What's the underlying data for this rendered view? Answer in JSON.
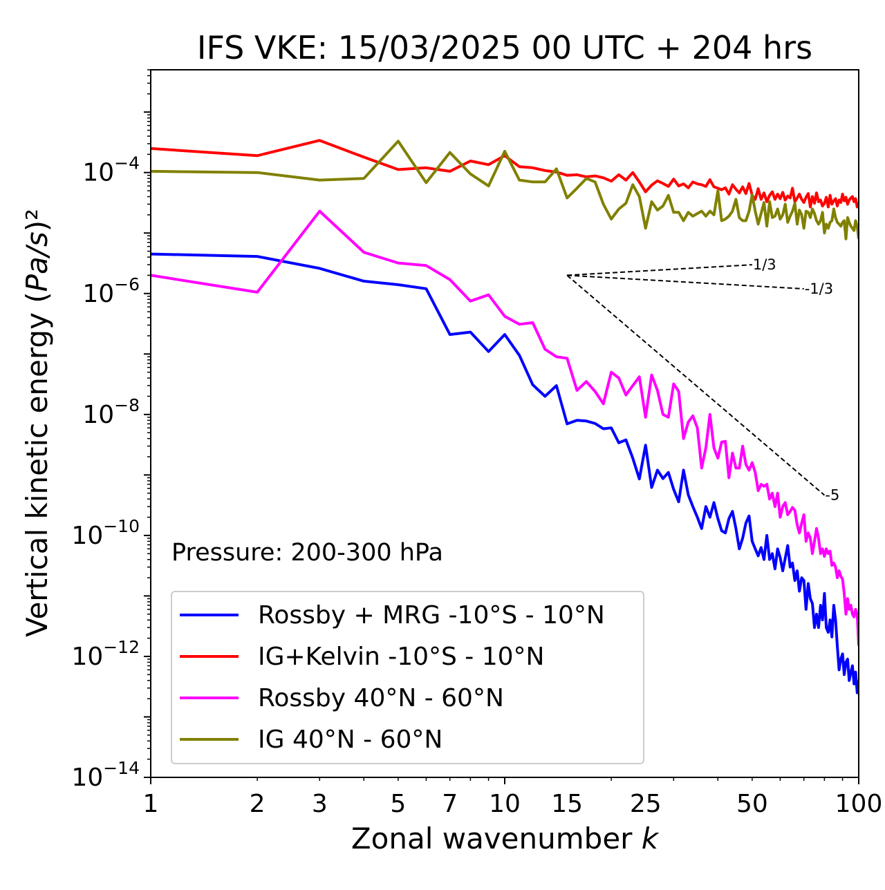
{
  "chart_data": {
    "type": "line",
    "title": "IFS VKE: 15/03/2025 00 UTC + 204 hrs",
    "xlabel": "Zonal wavenumber k",
    "ylabel": "Vertical kinetic energy (Pa/s)²",
    "xscale": "log",
    "yscale": "log",
    "xlim": [
      1,
      100
    ],
    "ylim": [
      1e-14,
      0.005
    ],
    "x_ticks": [
      1,
      2,
      3,
      5,
      7,
      10,
      15,
      25,
      50,
      100
    ],
    "x_tick_labels": [
      "1",
      "2",
      "3",
      "5",
      "7",
      "10",
      "15",
      "25",
      "50",
      "100"
    ],
    "y_ticks": [
      -14,
      -12,
      -10,
      -8,
      -6,
      -4
    ],
    "y_tick_base": "10",
    "annotation": "Pressure: 200-300 hPa",
    "legend_position": "lower-left",
    "series": [
      {
        "name": "Rossby + MRG -10°S - 10°N",
        "color": "#0000ff",
        "x": [
          1,
          2,
          3,
          4,
          5,
          6,
          7,
          8,
          9,
          10,
          11,
          12,
          13,
          14,
          15,
          16,
          17,
          18,
          19,
          20,
          21,
          22,
          23,
          24,
          25,
          26,
          27,
          28,
          29,
          30,
          31,
          32,
          33,
          34,
          35,
          36,
          37,
          38,
          39,
          40,
          41,
          42,
          43,
          44,
          45,
          46,
          47,
          48,
          49,
          50,
          51,
          52,
          53,
          54,
          55,
          56,
          57,
          58,
          59,
          60,
          61,
          62,
          63,
          64,
          65,
          66,
          67,
          68,
          69,
          70,
          71,
          72,
          73,
          74,
          75,
          76,
          77,
          78,
          79,
          80,
          81,
          82,
          83,
          84,
          85,
          86,
          87,
          88,
          89,
          90,
          91,
          92,
          93,
          94,
          95,
          96,
          97,
          98,
          99,
          100
        ],
        "y": [
          4.5e-06,
          4.1e-06,
          2.6e-06,
          1.6e-06,
          1.4e-06,
          1.2e-06,
          2.1e-07,
          2.3e-07,
          1.1e-07,
          2.1e-07,
          9.5e-08,
          3.1e-08,
          2e-08,
          3e-08,
          7e-09,
          8e-09,
          7.8e-09,
          7.1e-09,
          5.8e-09,
          6e-09,
          3.4e-09,
          3.8e-09,
          1.9e-09,
          8.6e-10,
          3.1e-09,
          6.2e-10,
          1.2e-09,
          8.7e-10,
          1.1e-09,
          5.8e-10,
          3.6e-10,
          1.2e-09,
          4.7e-10,
          3e-10,
          2e-10,
          1.3e-10,
          3e-10,
          2e-10,
          3.5e-10,
          1.9e-10,
          1.2e-10,
          1.1e-10,
          1.9e-10,
          2.5e-10,
          1.3e-10,
          6e-11,
          9e-11,
          1.6e-10,
          2.1e-10,
          8e-11,
          6e-11,
          4.6e-11,
          6.3e-11,
          4e-11,
          1e-10,
          4e-11,
          5e-11,
          2.8e-11,
          6e-11,
          4.3e-11,
          2.6e-11,
          4.2e-11,
          6.8e-11,
          3e-11,
          3.5e-11,
          1.8e-11,
          2.6e-11,
          1.2e-11,
          2e-11,
          1.8e-11,
          6e-12,
          1.6e-11,
          9e-12,
          7.5e-12,
          3e-12,
          5e-12,
          3e-12,
          7e-12,
          4e-12,
          1.1e-11,
          3e-12,
          2.5e-12,
          4e-12,
          2.1e-12,
          7e-12,
          4e-12,
          1.5e-12,
          6e-13,
          9e-13,
          1.1e-12,
          5e-13,
          8e-13,
          9e-13,
          4e-13,
          5.5e-13,
          7e-13,
          3.5e-13,
          5.5e-13,
          2.5e-13,
          4e-13
        ],
        "color_name": "blue"
      },
      {
        "name": "IG+Kelvin -10°S - 10°N",
        "color": "#ff0000",
        "x": [
          1,
          2,
          3,
          4,
          5,
          6,
          7,
          8,
          9,
          10,
          11,
          12,
          13,
          14,
          15,
          16,
          17,
          18,
          19,
          20,
          21,
          22,
          23,
          24,
          25,
          26,
          27,
          28,
          29,
          30,
          31,
          32,
          33,
          34,
          35,
          36,
          37,
          38,
          39,
          40,
          41,
          42,
          43,
          44,
          45,
          46,
          47,
          48,
          49,
          50,
          51,
          52,
          53,
          54,
          55,
          56,
          57,
          58,
          59,
          60,
          61,
          62,
          63,
          64,
          65,
          66,
          67,
          68,
          69,
          70,
          71,
          72,
          73,
          74,
          75,
          76,
          77,
          78,
          79,
          80,
          81,
          82,
          83,
          84,
          85,
          86,
          87,
          88,
          89,
          90,
          91,
          92,
          93,
          94,
          95,
          96,
          97,
          98,
          99,
          100
        ],
        "y": [
          0.00025,
          0.00019,
          0.00034,
          0.00018,
          0.000112,
          0.00012,
          0.000105,
          0.000155,
          0.000135,
          0.00019,
          0.000125,
          0.00012,
          0.000108,
          0.000102,
          9e-05,
          9.2e-05,
          8.5e-05,
          8.8e-05,
          8.2e-05,
          7.2e-05,
          9.2e-05,
          7.5e-05,
          0.0001,
          7e-05,
          4.8e-05,
          6.2e-05,
          7.3e-05,
          6.6e-05,
          5.9e-05,
          7.8e-05,
          6e-05,
          6.5e-05,
          5.6e-05,
          7e-05,
          6.5e-05,
          6.3e-05,
          5.9e-05,
          7.6e-05,
          5.8e-05,
          5.5e-05,
          5.2e-05,
          5.6e-05,
          4.4e-05,
          6.3e-05,
          5.3e-05,
          4.6e-05,
          5.8e-05,
          4.5e-05,
          6.6e-05,
          4.2e-05,
          3.6e-05,
          5.4e-05,
          3.6e-05,
          4.6e-05,
          3.3e-05,
          4.2e-05,
          4.8e-05,
          3.6e-05,
          4.4e-05,
          3.7e-05,
          4.7e-05,
          3.5e-05,
          4.1e-05,
          3.8e-05,
          5.5e-05,
          3.3e-05,
          3.8e-05,
          4.4e-05,
          3.6e-05,
          3.2e-05,
          3.9e-05,
          4.5e-05,
          2.7e-05,
          4e-05,
          3.1e-05,
          4.6e-05,
          3.3e-05,
          3.5e-05,
          2.8e-05,
          3.1e-05,
          3.9e-05,
          2.7e-05,
          4.2e-05,
          3e-05,
          3.4e-05,
          3.7e-05,
          2.8e-05,
          3.5e-05,
          3.2e-05,
          4.4e-05,
          3.4e-05,
          3.9e-05,
          3e-05,
          3.5e-05,
          3.8e-05,
          4e-05,
          3.3e-05,
          3.7e-05,
          2.7e-05,
          3.2e-05
        ],
        "color_name": "red"
      },
      {
        "name": "Rossby 40°N - 60°N",
        "color": "#ff00ff",
        "x": [
          1,
          2,
          3,
          4,
          5,
          6,
          7,
          8,
          9,
          10,
          11,
          12,
          13,
          14,
          15,
          16,
          17,
          18,
          19,
          20,
          21,
          22,
          23,
          24,
          25,
          26,
          27,
          28,
          29,
          30,
          31,
          32,
          33,
          34,
          35,
          36,
          37,
          38,
          39,
          40,
          41,
          42,
          43,
          44,
          45,
          46,
          47,
          48,
          49,
          50,
          51,
          52,
          53,
          54,
          55,
          56,
          57,
          58,
          59,
          60,
          61,
          62,
          63,
          64,
          65,
          66,
          67,
          68,
          69,
          70,
          71,
          72,
          73,
          74,
          75,
          76,
          77,
          78,
          79,
          80,
          81,
          82,
          83,
          84,
          85,
          86,
          87,
          88,
          89,
          90,
          91,
          92,
          93,
          94,
          95,
          96,
          97,
          98,
          99,
          100
        ],
        "y": [
          2e-06,
          1.05e-06,
          2.3e-05,
          4.8e-06,
          3.2e-06,
          2.9e-06,
          1.7e-06,
          7.5e-07,
          9.5e-07,
          4.2e-07,
          3.1e-07,
          3.3e-07,
          1.2e-07,
          9e-08,
          8.5e-08,
          2.5e-08,
          3.5e-08,
          2.4e-08,
          1.5e-08,
          5e-08,
          4e-08,
          2.1e-08,
          3e-08,
          4.2e-08,
          9e-09,
          4.5e-08,
          2.5e-08,
          1e-08,
          9e-09,
          3.2e-08,
          2.4e-08,
          4e-09,
          7.5e-09,
          9.5e-09,
          6e-09,
          1.3e-09,
          2.8e-09,
          1e-08,
          2.8e-09,
          1.9e-09,
          3.5e-09,
          3.6e-09,
          9e-10,
          2.3e-09,
          1.3e-09,
          1.3e-09,
          3e-09,
          1.5e-09,
          1.2e-09,
          1.6e-09,
          1.1e-09,
          5.5e-10,
          7e-10,
          6.5e-10,
          7e-10,
          4e-10,
          5e-10,
          3e-10,
          5e-10,
          2e-10,
          3e-10,
          3.5e-10,
          2.2e-10,
          2.5e-10,
          2.9e-10,
          2.6e-10,
          1.5e-10,
          1.1e-10,
          1.6e-10,
          2.2e-10,
          8e-11,
          1.1e-10,
          9e-11,
          5e-11,
          8e-11,
          1.3e-10,
          9e-11,
          5e-11,
          6e-11,
          4.5e-11,
          6e-11,
          5e-11,
          5.5e-11,
          3.2e-11,
          3.5e-11,
          3e-11,
          2e-11,
          2.6e-11,
          2.1e-11,
          1.9e-11,
          1.1e-11,
          5e-12,
          9e-12,
          6e-12,
          7e-12,
          5e-12,
          4.5e-12,
          6e-12,
          5e-12,
          1.5e-12
        ],
        "color_name": "magenta"
      },
      {
        "name": "IG 40°N - 60°N",
        "color": "#808000",
        "x": [
          1,
          2,
          3,
          4,
          5,
          6,
          7,
          8,
          9,
          10,
          11,
          12,
          13,
          14,
          15,
          16,
          17,
          18,
          19,
          20,
          21,
          22,
          23,
          24,
          25,
          26,
          27,
          28,
          29,
          30,
          31,
          32,
          33,
          34,
          35,
          36,
          37,
          38,
          39,
          40,
          41,
          42,
          43,
          44,
          45,
          46,
          47,
          48,
          49,
          50,
          51,
          52,
          53,
          54,
          55,
          56,
          57,
          58,
          59,
          60,
          61,
          62,
          63,
          64,
          65,
          66,
          67,
          68,
          69,
          70,
          71,
          72,
          73,
          74,
          75,
          76,
          77,
          78,
          79,
          80,
          81,
          82,
          83,
          84,
          85,
          86,
          87,
          88,
          89,
          90,
          91,
          92,
          93,
          94,
          95,
          96,
          97,
          98,
          99,
          100
        ],
        "y": [
          0.000105,
          0.0001,
          7.5e-05,
          8e-05,
          0.00033,
          6.8e-05,
          0.000215,
          9.5e-05,
          6e-05,
          0.000225,
          7.5e-05,
          7e-05,
          7e-05,
          0.000115,
          3.8e-05,
          5.5e-05,
          8e-05,
          7e-05,
          3e-05,
          1.7e-05,
          2.5e-05,
          3.1e-05,
          6.3e-05,
          4e-05,
          1.2e-05,
          3.3e-05,
          2.4e-05,
          2.8e-05,
          4.2e-05,
          2.2e-05,
          2.2e-05,
          1.6e-05,
          2.2e-05,
          1.9e-05,
          2.1e-05,
          2.3e-05,
          1.9e-05,
          2.3e-05,
          2e-05,
          5e-05,
          1.6e-05,
          1.7e-05,
          1.9e-05,
          2.3e-05,
          3.6e-05,
          1.8e-05,
          1.6e-05,
          1.6e-05,
          2.3e-05,
          4.3e-05,
          2.3e-05,
          1.4e-05,
          2.1e-05,
          3.2e-05,
          1.3e-05,
          3.3e-05,
          1.8e-05,
          1.9e-05,
          2.5e-05,
          1.7e-05,
          2e-05,
          3e-05,
          1.5e-05,
          1.9e-05,
          2.3e-05,
          3.1e-05,
          1.4e-05,
          2.4e-05,
          2e-05,
          1.2e-05,
          2.3e-05,
          2.2e-05,
          1.8e-05,
          2.5e-05,
          2.1e-05,
          1.6e-05,
          1.4e-05,
          1.6e-05,
          2.2e-05,
          1e-05,
          1.4e-05,
          1.2e-05,
          1.5e-05,
          1.6e-05,
          2.5e-05,
          1.8e-05,
          1.5e-05,
          1.4e-05,
          1.3e-05,
          1.5e-05,
          1.6e-05,
          8e-06,
          1.8e-05,
          1.5e-05,
          1.3e-05,
          1.2e-05,
          1.1e-05,
          1.6e-05,
          1.3e-05,
          8e-06
        ],
        "color_name": "olive"
      }
    ],
    "reference_slopes": [
      {
        "label": "1/3",
        "slope": 0.3333,
        "x_start": 15,
        "x_end": 50,
        "y_start": 2e-06
      },
      {
        "label": "-1/3",
        "slope": -0.3333,
        "x_start": 15,
        "x_end": 70,
        "y_start": 2e-06
      },
      {
        "label": "-5",
        "slope": -5,
        "x_start": 15,
        "x_end": 80,
        "y_start": 2e-06
      }
    ]
  }
}
